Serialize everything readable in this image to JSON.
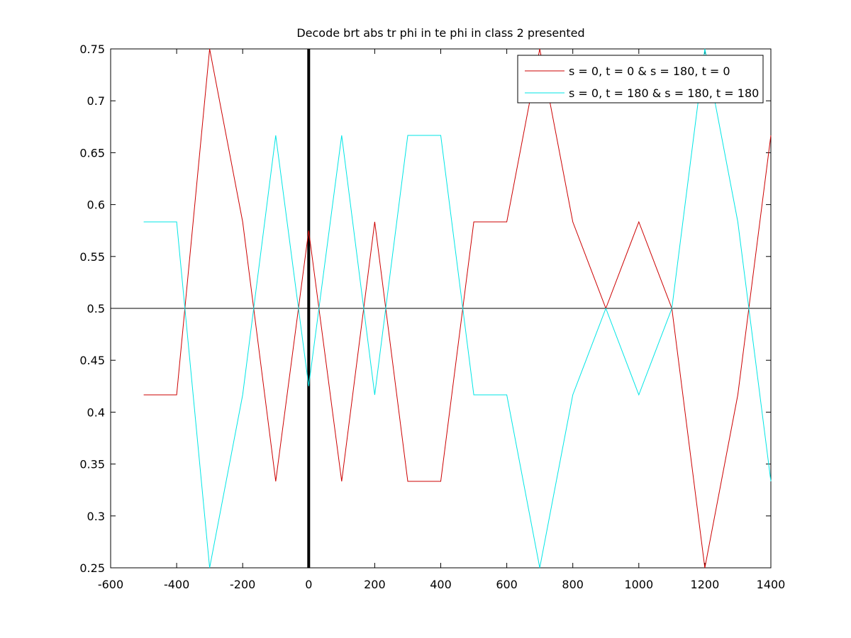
{
  "chart_data": {
    "type": "line",
    "title": "Decode brt abs tr phi in te phi in  class 2 presented",
    "xlabel": "",
    "ylabel": "",
    "xlim": [
      -600,
      1400
    ],
    "ylim": [
      0.25,
      0.75
    ],
    "x_ticks": [
      -600,
      -400,
      -200,
      0,
      200,
      400,
      600,
      800,
      1000,
      1200,
      1400
    ],
    "y_ticks": [
      0.25,
      0.3,
      0.35,
      0.4,
      0.45,
      0.5,
      0.55,
      0.6,
      0.65,
      0.7,
      0.75
    ],
    "x_tick_labels": [
      "-600",
      "-400",
      "-200",
      "0",
      "200",
      "400",
      "600",
      "800",
      "1000",
      "1200",
      "1400"
    ],
    "y_tick_labels": [
      "0.25",
      "0.3",
      "0.35",
      "0.4",
      "0.45",
      "0.5",
      "0.55",
      "0.6",
      "0.65",
      "0.7",
      "0.75"
    ],
    "grid": false,
    "legend_position": "top-right",
    "x": [
      -500,
      -400,
      -300,
      -200,
      -100,
      0,
      100,
      200,
      300,
      400,
      500,
      600,
      700,
      800,
      900,
      1000,
      1100,
      1200,
      1300,
      1400
    ],
    "series": [
      {
        "name": "s = 0, t = 0 & s = 180, t = 0",
        "color": "#cc0000",
        "values": [
          0.4167,
          0.4167,
          0.75,
          0.5833,
          0.3333,
          0.575,
          0.3333,
          0.5833,
          0.3333,
          0.3333,
          0.5833,
          0.5833,
          0.75,
          0.5833,
          0.5,
          0.5833,
          0.5,
          0.25,
          0.4167,
          0.6667
        ]
      },
      {
        "name": "s = 0, t = 180 & s = 180, t = 180",
        "color": "#00e5e5",
        "values": [
          0.5833,
          0.5833,
          0.25,
          0.4167,
          0.6667,
          0.425,
          0.6667,
          0.4167,
          0.6667,
          0.6667,
          0.4167,
          0.4167,
          0.25,
          0.4167,
          0.5,
          0.4167,
          0.5,
          0.75,
          0.5833,
          0.3333
        ]
      }
    ],
    "reference_lines": [
      {
        "orientation": "horizontal",
        "value": 0.5,
        "color": "#000000"
      },
      {
        "orientation": "vertical",
        "value": 0,
        "color": "#000000",
        "emphasis": "thick"
      }
    ]
  }
}
